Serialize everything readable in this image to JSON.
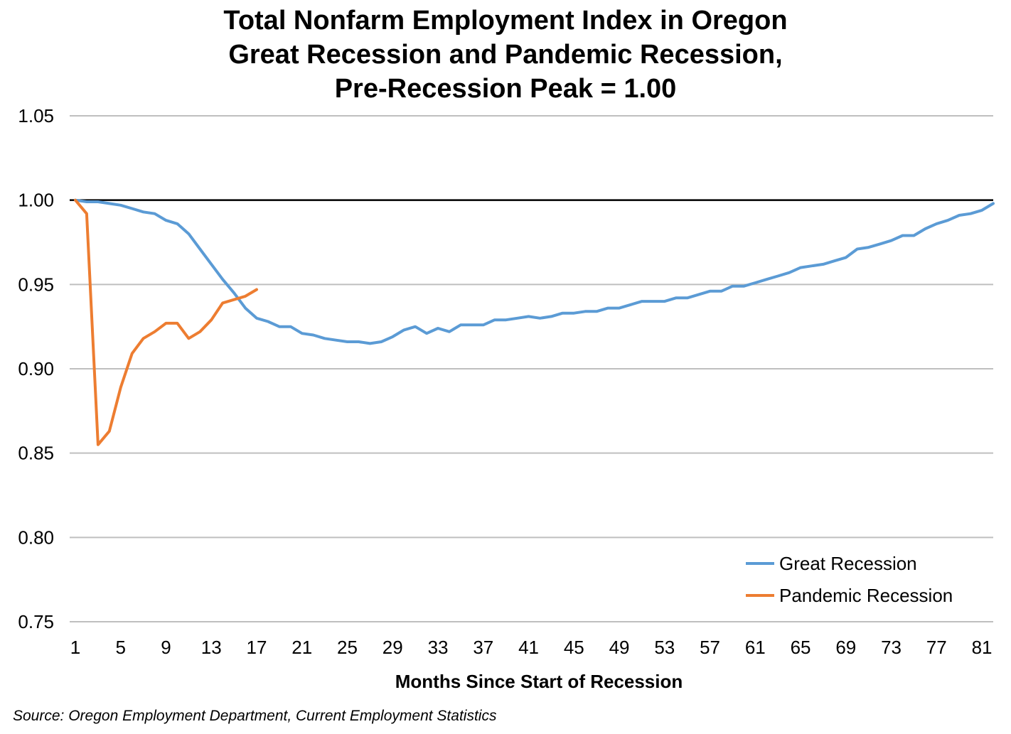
{
  "chart_data": {
    "type": "line",
    "title_lines": [
      "Total Nonfarm Employment Index in Oregon",
      "Great Recession and Pandemic Recession,",
      "Pre-Recession Peak = 1.00"
    ],
    "xlabel": "Months Since Start of Recession",
    "ylabel": "",
    "x_tick_labels": [
      "1",
      "5",
      "9",
      "13",
      "17",
      "21",
      "25",
      "29",
      "33",
      "37",
      "41",
      "45",
      "49",
      "53",
      "57",
      "61",
      "65",
      "69",
      "73",
      "77",
      "81"
    ],
    "y_tick_labels": [
      "1.05",
      "1.00",
      "0.95",
      "0.90",
      "0.85",
      "0.80",
      "0.75"
    ],
    "ylim": [
      0.75,
      1.05
    ],
    "xlim": [
      1,
      82
    ],
    "grid": true,
    "reference_line": 1.0,
    "legend_position": "bottom-right",
    "series": [
      {
        "name": "Great Recession",
        "color": "#5b9bd5",
        "x": [
          1,
          2,
          3,
          4,
          5,
          6,
          7,
          8,
          9,
          10,
          11,
          12,
          13,
          14,
          15,
          16,
          17,
          18,
          19,
          20,
          21,
          22,
          23,
          24,
          25,
          26,
          27,
          28,
          29,
          30,
          31,
          32,
          33,
          34,
          35,
          36,
          37,
          38,
          39,
          40,
          41,
          42,
          43,
          44,
          45,
          46,
          47,
          48,
          49,
          50,
          51,
          52,
          53,
          54,
          55,
          56,
          57,
          58,
          59,
          60,
          61,
          62,
          63,
          64,
          65,
          66,
          67,
          68,
          69,
          70,
          71,
          72,
          73,
          74,
          75,
          76,
          77,
          78,
          79,
          80,
          81,
          82
        ],
        "values": [
          1.0,
          0.999,
          0.999,
          0.998,
          0.997,
          0.995,
          0.993,
          0.992,
          0.988,
          0.986,
          0.98,
          0.971,
          0.962,
          0.953,
          0.945,
          0.936,
          0.93,
          0.928,
          0.925,
          0.925,
          0.921,
          0.92,
          0.918,
          0.917,
          0.916,
          0.916,
          0.915,
          0.916,
          0.919,
          0.923,
          0.925,
          0.921,
          0.924,
          0.922,
          0.926,
          0.926,
          0.926,
          0.929,
          0.929,
          0.93,
          0.931,
          0.93,
          0.931,
          0.933,
          0.933,
          0.934,
          0.934,
          0.936,
          0.936,
          0.938,
          0.94,
          0.94,
          0.94,
          0.942,
          0.942,
          0.944,
          0.946,
          0.946,
          0.949,
          0.949,
          0.951,
          0.953,
          0.955,
          0.957,
          0.96,
          0.961,
          0.962,
          0.964,
          0.966,
          0.971,
          0.972,
          0.974,
          0.976,
          0.979,
          0.979,
          0.983,
          0.986,
          0.988,
          0.991,
          0.992,
          0.994,
          0.998
        ]
      },
      {
        "name": "Pandemic Recession",
        "color": "#ed7d31",
        "x": [
          1,
          2,
          3,
          4,
          5,
          6,
          7,
          8,
          9,
          10,
          11,
          12,
          13,
          14,
          15,
          16,
          17
        ],
        "values": [
          1.0,
          0.992,
          0.855,
          0.863,
          0.889,
          0.909,
          0.918,
          0.922,
          0.927,
          0.927,
          0.918,
          0.922,
          0.929,
          0.939,
          0.941,
          0.943,
          0.947
        ]
      }
    ]
  },
  "source": "Source: Oregon Employment Department, Current Employment Statistics"
}
